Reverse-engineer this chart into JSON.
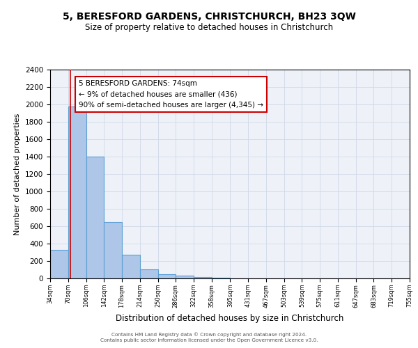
{
  "title": "5, BERESFORD GARDENS, CHRISTCHURCH, BH23 3QW",
  "subtitle": "Size of property relative to detached houses in Christchurch",
  "xlabel": "Distribution of detached houses by size in Christchurch",
  "ylabel": "Number of detached properties",
  "bin_edges": [
    34,
    70,
    106,
    142,
    178,
    214,
    250,
    286,
    322,
    358,
    395,
    431,
    467,
    503,
    539,
    575,
    611,
    647,
    683,
    719,
    755
  ],
  "bar_heights": [
    325,
    1975,
    1400,
    650,
    275,
    105,
    45,
    30,
    20,
    5,
    0,
    0,
    0,
    0,
    0,
    0,
    0,
    0,
    0,
    0
  ],
  "bar_color": "#aec6e8",
  "bar_edge_color": "#5a9fd4",
  "vline_x": 74,
  "vline_color": "#cc0000",
  "ylim": [
    0,
    2400
  ],
  "yticks": [
    0,
    200,
    400,
    600,
    800,
    1000,
    1200,
    1400,
    1600,
    1800,
    2000,
    2200,
    2400
  ],
  "grid_color": "#d0d8e8",
  "bg_color": "#eef2f8",
  "annotation_title": "5 BERESFORD GARDENS: 74sqm",
  "annotation_line1": "← 9% of detached houses are smaller (436)",
  "annotation_line2": "90% of semi-detached houses are larger (4,345) →",
  "footer_line1": "Contains HM Land Registry data © Crown copyright and database right 2024.",
  "footer_line2": "Contains public sector information licensed under the Open Government Licence v3.0.",
  "tick_labels": [
    "34sqm",
    "70sqm",
    "106sqm",
    "142sqm",
    "178sqm",
    "214sqm",
    "250sqm",
    "286sqm",
    "322sqm",
    "358sqm",
    "395sqm",
    "431sqm",
    "467sqm",
    "503sqm",
    "539sqm",
    "575sqm",
    "611sqm",
    "647sqm",
    "683sqm",
    "719sqm",
    "755sqm"
  ]
}
